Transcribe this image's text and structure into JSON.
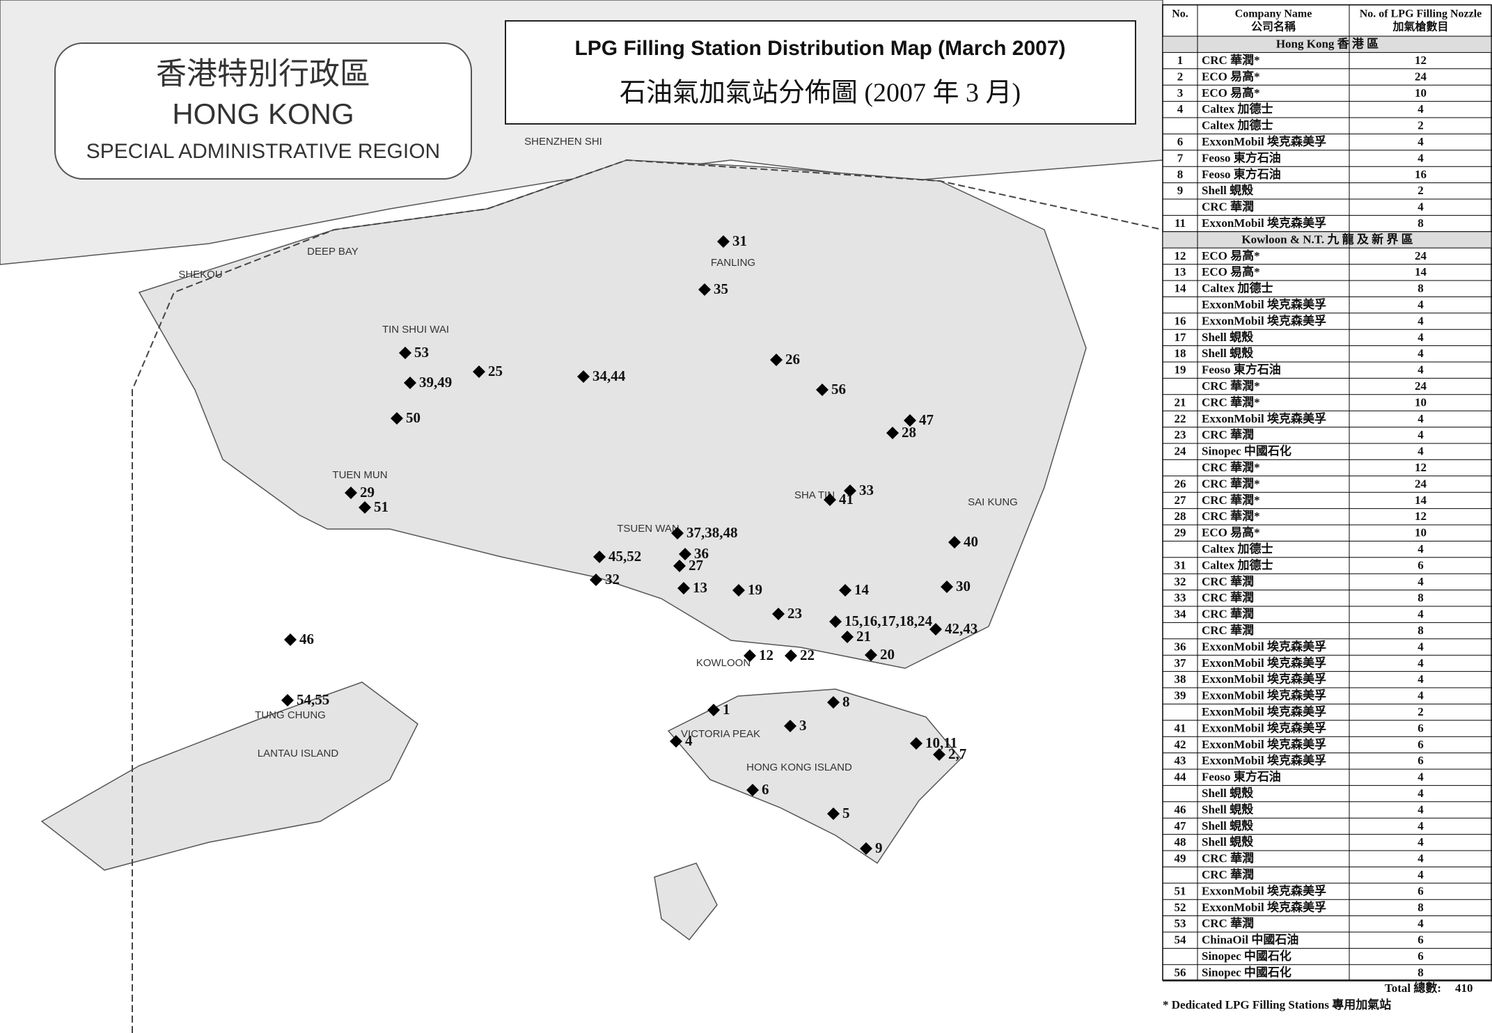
{
  "title": "LPG Filling Station Distribution Map (March 2007)",
  "title_zh": "石油氣加氣站分佈圖 (2007 年 3 月)",
  "region_box": {
    "zh": "香港特別行政區",
    "en": "HONG KONG",
    "sub": "SPECIAL ADMINISTRATIVE REGION"
  },
  "table": {
    "headers": {
      "no": "No.",
      "company": [
        "Company Name",
        "公司名稱"
      ],
      "nozzles": [
        "No. of LPG Filling Nozzle",
        "加氣槍數目"
      ]
    },
    "sections": [
      {
        "title": "Hong Kong 香 港 區",
        "rows": [
          [
            1,
            "CRC 華潤*",
            12
          ],
          [
            2,
            "ECO 易高*",
            24
          ],
          [
            3,
            "ECO 易高*",
            10
          ],
          [
            4,
            "Caltex 加德士",
            4
          ],
          [
            null,
            "Caltex 加德士",
            2
          ],
          [
            6,
            "ExxonMobil 埃克森美孚",
            4
          ],
          [
            7,
            "Feoso 東方石油",
            4
          ],
          [
            8,
            "Feoso 東方石油",
            16
          ],
          [
            9,
            "Shell 蜆殼",
            2
          ],
          [
            null,
            "CRC 華潤",
            4
          ],
          [
            11,
            "ExxonMobil 埃克森美孚",
            8
          ]
        ]
      },
      {
        "title": "Kowloon & N.T. 九 龍 及 新 界 區",
        "rows": [
          [
            12,
            "ECO 易高*",
            24
          ],
          [
            13,
            "ECO 易高*",
            14
          ],
          [
            14,
            "Caltex 加德士",
            8
          ],
          [
            null,
            "ExxonMobil 埃克森美孚",
            4
          ],
          [
            16,
            "ExxonMobil 埃克森美孚",
            4
          ],
          [
            17,
            "Shell 蜆殼",
            4
          ],
          [
            18,
            "Shell 蜆殼",
            4
          ],
          [
            19,
            "Feoso 東方石油",
            4
          ],
          [
            null,
            "CRC 華潤*",
            24
          ],
          [
            21,
            "CRC 華潤*",
            10
          ],
          [
            22,
            "ExxonMobil 埃克森美孚",
            4
          ],
          [
            23,
            "CRC 華潤",
            4
          ],
          [
            24,
            "Sinopec 中國石化",
            4
          ],
          [
            null,
            "CRC 華潤*",
            12
          ],
          [
            26,
            "CRC 華潤*",
            24
          ],
          [
            27,
            "CRC 華潤*",
            14
          ],
          [
            28,
            "CRC 華潤*",
            12
          ],
          [
            29,
            "ECO 易高*",
            10
          ],
          [
            null,
            "Caltex 加德士",
            4
          ],
          [
            31,
            "Caltex 加德士",
            6
          ],
          [
            32,
            "CRC 華潤",
            4
          ],
          [
            33,
            "CRC 華潤",
            8
          ],
          [
            34,
            "CRC 華潤",
            4
          ],
          [
            null,
            "CRC 華潤",
            8
          ],
          [
            36,
            "ExxonMobil 埃克森美孚",
            4
          ],
          [
            37,
            "ExxonMobil 埃克森美孚",
            4
          ],
          [
            38,
            "ExxonMobil 埃克森美孚",
            4
          ],
          [
            39,
            "ExxonMobil 埃克森美孚",
            4
          ],
          [
            null,
            "ExxonMobil 埃克森美孚",
            2
          ],
          [
            41,
            "ExxonMobil 埃克森美孚",
            6
          ],
          [
            42,
            "ExxonMobil 埃克森美孚",
            6
          ],
          [
            43,
            "ExxonMobil 埃克森美孚",
            6
          ],
          [
            44,
            "Feoso 東方石油",
            4
          ],
          [
            null,
            "Shell 蜆殼",
            4
          ],
          [
            46,
            "Shell 蜆殼",
            4
          ],
          [
            47,
            "Shell 蜆殼",
            4
          ],
          [
            48,
            "Shell 蜆殼",
            4
          ],
          [
            49,
            "CRC 華潤",
            4
          ],
          [
            null,
            "CRC 華潤",
            4
          ],
          [
            51,
            "ExxonMobil 埃克森美孚",
            6
          ],
          [
            52,
            "ExxonMobil 埃克森美孚",
            8
          ],
          [
            53,
            "CRC 華潤",
            4
          ],
          [
            54,
            "ChinaOil 中國石油",
            6
          ],
          [
            null,
            "Sinopec 中國石化",
            6
          ],
          [
            56,
            "Sinopec 中國石化",
            8
          ]
        ]
      }
    ],
    "total_label": "Total 總數:",
    "total": 410,
    "footnote": "* Dedicated LPG Filling Stations 專用加氣站"
  },
  "stations": [
    "31",
    "35",
    "26",
    "56",
    "53",
    "39,49",
    "25",
    "34,44",
    "50",
    "47",
    "28",
    "29",
    "51",
    "33",
    "41",
    "37,38,48",
    "40",
    "45,52",
    "36",
    "27",
    "32",
    "13",
    "19",
    "14",
    "30",
    "23",
    "15,16,17,18,24",
    "42,43",
    "21",
    "46",
    "12",
    "22",
    "20",
    "54,55",
    "8",
    "1",
    "3",
    "4",
    "10,11",
    "2,7",
    "6",
    "5",
    "9"
  ],
  "places": [
    "SHENZHEN SHI",
    "DEEP BAY",
    "SHEKOU",
    "TIN SHUI WAI",
    "TUEN MUN",
    "FANLING",
    "TSUEN WAN",
    "SHA TIN",
    "SAI KUNG",
    "KOWLOON",
    "HONG KONG ISLAND",
    "VICTORIA PEAK",
    "LANTAU ISLAND",
    "TUNG CHUNG"
  ]
}
